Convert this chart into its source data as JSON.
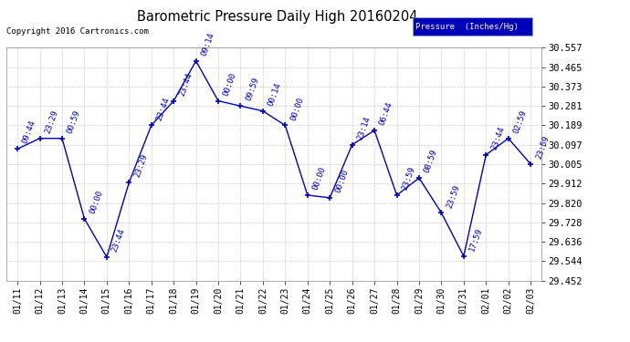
{
  "title": "Barometric Pressure Daily High 20160204",
  "copyright": "Copyright 2016 Cartronics.com",
  "legend_label": "Pressure  (Inches/Hg)",
  "dates": [
    "01/11",
    "01/12",
    "01/13",
    "01/14",
    "01/15",
    "01/16",
    "01/17",
    "01/18",
    "01/19",
    "01/20",
    "01/21",
    "01/22",
    "01/23",
    "01/24",
    "01/25",
    "01/26",
    "01/27",
    "01/28",
    "01/29",
    "01/30",
    "01/31",
    "02/01",
    "02/02",
    "02/03"
  ],
  "values": [
    30.077,
    30.127,
    30.127,
    29.745,
    29.563,
    29.917,
    30.189,
    30.305,
    30.495,
    30.305,
    30.281,
    30.257,
    30.189,
    29.857,
    29.845,
    30.097,
    30.165,
    29.857,
    29.939,
    29.773,
    29.567,
    30.049,
    30.127,
    30.005
  ],
  "annotations": [
    "09:44",
    "23:29",
    "00:59",
    "00:00",
    "23:44",
    "23:29",
    "23:44",
    "23:44",
    "09:14",
    "00:00",
    "09:59",
    "00:14",
    "00:00",
    "00:00",
    "00:00",
    "23:14",
    "06:44",
    "23:59",
    "08:59",
    "23:59",
    "17:59",
    "23:44",
    "02:59",
    "23:59"
  ],
  "ylim_min": 29.452,
  "ylim_max": 30.557,
  "yticks": [
    29.452,
    29.544,
    29.636,
    29.728,
    29.82,
    29.912,
    30.005,
    30.097,
    30.189,
    30.281,
    30.373,
    30.465,
    30.557
  ],
  "line_color": "#0000bb",
  "marker_color": "#0000bb",
  "bg_color": "#ffffff",
  "grid_color": "#cccccc",
  "title_color": "#000000",
  "copyright_color": "#000000",
  "legend_bg": "#0000bb",
  "legend_text_color": "#ffffff",
  "annotation_color": "#0000bb",
  "annotation_fontsize": 6.5,
  "annotation_rotation": 70
}
